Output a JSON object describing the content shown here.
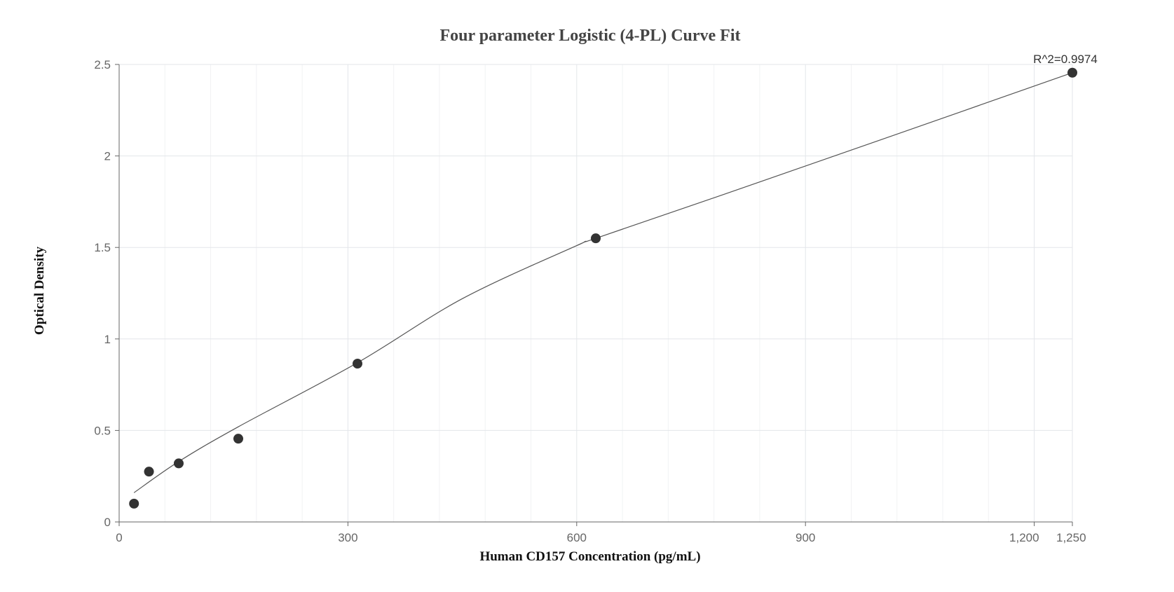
{
  "chart_data": {
    "type": "scatter",
    "title": "Four parameter Logistic (4-PL) Curve Fit",
    "xlabel": "Human CD157 Concentration (pg/mL)",
    "ylabel": "Optical Density",
    "xlim": [
      0,
      1250
    ],
    "ylim": [
      0,
      2.5
    ],
    "x_ticks": [
      0,
      300,
      600,
      900,
      1200,
      1250
    ],
    "x_tick_labels": [
      "0",
      "300",
      "600",
      "900",
      "1,200",
      "1,250"
    ],
    "x_minor_step": 60,
    "y_ticks": [
      0,
      0.5,
      1,
      1.5,
      2,
      2.5
    ],
    "y_tick_labels": [
      "0",
      "0.5",
      "1",
      "1.5",
      "2",
      "2.5"
    ],
    "grid": true,
    "legend": "none",
    "annotation": "R^2=0.9974",
    "point_color": "#333333",
    "curve_color": "#555555",
    "series": [
      {
        "x": [
          19.5,
          39.1,
          78.1,
          156.25,
          312.5,
          625,
          1250
        ],
        "y": [
          0.1,
          0.275,
          0.32,
          0.455,
          0.865,
          1.55,
          2.455
        ]
      }
    ],
    "fit_curve": {
      "x": [
        19.5,
        78.1,
        156.25,
        312.5,
        450,
        600,
        625,
        800,
        1000,
        1250
      ],
      "y": [
        0.16,
        0.33,
        0.52,
        0.87,
        1.22,
        1.51,
        1.55,
        1.8,
        2.09,
        2.455
      ]
    }
  }
}
